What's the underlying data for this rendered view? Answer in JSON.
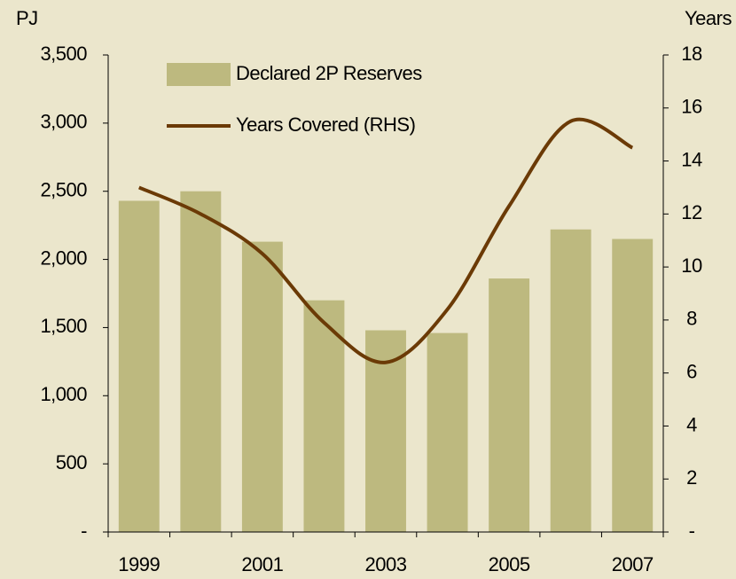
{
  "chart_data": {
    "type": "bar_line",
    "y_label": "PJ",
    "y2_label": "Years",
    "categories": [
      "1999",
      null,
      "2001",
      null,
      "2003",
      null,
      "2005",
      null,
      "2007"
    ],
    "series": [
      {
        "name": "Declared 2P Reserves",
        "type": "bar",
        "color": "#bdb97f",
        "values": [
          2430,
          2500,
          2130,
          1700,
          1480,
          1460,
          1860,
          2220,
          2150
        ]
      },
      {
        "name": "Years Covered (RHS)",
        "type": "line",
        "axis": "y2",
        "color": "#6b3a06",
        "values": [
          13.0,
          12.0,
          10.5,
          7.9,
          6.4,
          8.4,
          12.3,
          15.5,
          14.5
        ]
      }
    ],
    "ylim": [
      0,
      3500
    ],
    "yticks": [
      {
        "value": 0,
        "label": "-"
      },
      500,
      {
        "value": 1000,
        "label": "1,000"
      },
      {
        "value": 1500,
        "label": "1,500"
      },
      {
        "value": 2000,
        "label": "2,000"
      },
      {
        "value": 2500,
        "label": "2,500"
      },
      {
        "value": 3000,
        "label": "3,000"
      },
      {
        "value": 3500,
        "label": "3,500"
      }
    ],
    "y2lim": [
      0,
      18
    ],
    "y2ticks": [
      {
        "value": 0,
        "label": "-"
      },
      2,
      4,
      6,
      8,
      10,
      12,
      14,
      16,
      18
    ],
    "legend": "top-left"
  }
}
